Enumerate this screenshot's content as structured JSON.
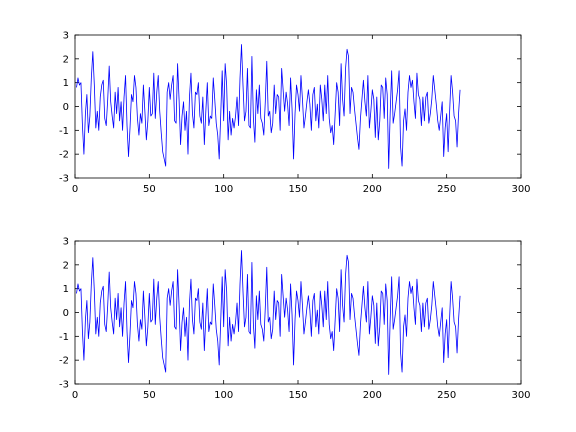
{
  "chart_data": [
    {
      "type": "line",
      "title": "",
      "xlabel": "",
      "ylabel": "",
      "xlim": [
        0,
        300
      ],
      "ylim": [
        -3,
        3
      ],
      "xticks": [
        0,
        50,
        100,
        150,
        200,
        250,
        300
      ],
      "yticks": [
        -3,
        -2,
        -1,
        0,
        1,
        2,
        3
      ],
      "xtick_labels": [
        "0",
        "50",
        "100",
        "150",
        "200",
        "250",
        "300"
      ],
      "ytick_labels": [
        "-3",
        "-2",
        "-1",
        "0",
        "1",
        "2",
        "3"
      ],
      "grid": false,
      "series": [
        {
          "color": "#0000ff",
          "x_start": 1,
          "x_step": 1,
          "values": [
            0.8,
            1.2,
            0.9,
            1.0,
            -0.8,
            -2.0,
            -0.3,
            0.5,
            -1.1,
            -0.4,
            1.2,
            2.3,
            0.9,
            -0.9,
            -0.2,
            -1.0,
            0.4,
            0.9,
            1.1,
            -0.5,
            -0.8,
            0.3,
            1.7,
            0.2,
            -0.4,
            -0.9,
            0.6,
            -0.3,
            0.8,
            -0.6,
            0.2,
            -1.0,
            0.4,
            1.3,
            -0.8,
            -2.1,
            -0.9,
            0.5,
            0.2,
            1.3,
            0.8,
            -0.5,
            -1.2,
            -0.3,
            -0.7,
            0.9,
            -0.2,
            -1.4,
            -0.6,
            0.8,
            -0.4,
            -0.3,
            1.4,
            -0.5,
            0.6,
            1.3,
            -0.2,
            -1.1,
            -1.9,
            -2.2,
            -2.5,
            0.6,
            1.0,
            0.3,
            0.9,
            1.3,
            -0.6,
            -0.7,
            1.8,
            0.3,
            -1.6,
            -0.4,
            0.2,
            -1.0,
            -0.2,
            -2.0,
            0.4,
            1.4,
            -0.3,
            -0.9,
            0.6,
            0.5,
            1.0,
            -0.4,
            -0.7,
            0.4,
            -1.6,
            -0.2,
            1.0,
            -0.8,
            -0.4,
            -0.5,
            1.2,
            0.3,
            -0.7,
            -1.2,
            -2.2,
            -0.4,
            1.5,
            -0.6,
            1.8,
            0.9,
            -1.4,
            -0.2,
            -1.2,
            -0.5,
            -0.9,
            -0.4,
            0.4,
            -0.8,
            1.2,
            2.6,
            0.9,
            -0.6,
            -0.2,
            1.6,
            -0.8,
            -0.9,
            2.1,
            -0.5,
            -1.5,
            0.7,
            -0.3,
            0.9,
            -0.5,
            -0.7,
            -1.2,
            0.2,
            1.9,
            -0.4,
            -0.2,
            -1.1,
            -0.7,
            0.9,
            -0.3,
            0.5,
            0.4,
            -1.0,
            1.6,
            0.7,
            -0.2,
            0.6,
            0.1,
            -0.8,
            1.2,
            -0.1,
            -2.2,
            -0.3,
            0.9,
            0.5,
            -0.2,
            1.3,
            0.3,
            -0.9,
            -0.4,
            0.2,
            0.7,
            0.1,
            -1.0,
            0.5,
            0.8,
            -0.6,
            0.1,
            -0.9,
            0.9,
            0.3,
            -0.6,
            0.9,
            -0.3,
            1.3,
            -0.5,
            -1.1,
            -0.8,
            -1.6,
            -0.3,
            1.0,
            0.6,
            -0.8,
            1.8,
            0.3,
            -0.4,
            1.6,
            2.4,
            2.1,
            -0.3,
            0.8,
            0.6,
            -0.1,
            -0.7,
            -1.3,
            -1.8,
            -0.5,
            0.3,
            1.1,
            0.2,
            -0.4,
            1.3,
            -0.9,
            -0.2,
            0.7,
            0.3,
            -1.3,
            0.4,
            -1.4,
            -0.6,
            0.9,
            0.8,
            -0.5,
            1.2,
            0.5,
            -2.6,
            -0.3,
            1.5,
            -0.7,
            -0.3,
            0.2,
            0.7,
            1.5,
            -1.7,
            -2.5,
            -0.6,
            -0.1,
            -1.0,
            0.6,
            1.3,
            0.8,
            1.1,
            0.2,
            -0.5,
            1.4,
            0.5,
            0.3,
            -0.8,
            0.4,
            -0.6,
            0.4,
            0.6,
            -0.7,
            -0.3,
            0.3,
            1.3,
            0.7,
            0.1,
            -0.6,
            -1.0,
            -0.4,
            0.2,
            -2.1,
            -0.9,
            -0.3,
            -1.9,
            -0.2,
            1.3,
            0.6,
            -0.4,
            -0.6,
            -1.7,
            -0.3,
            0.7
          ]
        }
      ]
    },
    {
      "type": "line",
      "title": "",
      "xlabel": "",
      "ylabel": "",
      "xlim": [
        0,
        300
      ],
      "ylim": [
        -3,
        3
      ],
      "xticks": [
        0,
        50,
        100,
        150,
        200,
        250,
        300
      ],
      "yticks": [
        -3,
        -2,
        -1,
        0,
        1,
        2,
        3
      ],
      "xtick_labels": [
        "0",
        "50",
        "100",
        "150",
        "200",
        "250",
        "300"
      ],
      "ytick_labels": [
        "-3",
        "-2",
        "-1",
        "0",
        "1",
        "2",
        "3"
      ],
      "grid": false,
      "series": [
        {
          "color": "#0000ff",
          "x_start": 1,
          "x_step": 1,
          "values": [
            0.8,
            1.2,
            0.9,
            1.0,
            -0.8,
            -2.0,
            -0.3,
            0.5,
            -1.1,
            -0.4,
            1.2,
            2.3,
            0.9,
            -0.9,
            -0.2,
            -1.0,
            0.4,
            0.9,
            1.1,
            -0.5,
            -0.8,
            0.3,
            1.7,
            0.2,
            -0.4,
            -0.9,
            0.6,
            -0.3,
            0.8,
            -0.6,
            0.2,
            -1.0,
            0.4,
            1.3,
            -0.8,
            -2.1,
            -0.9,
            0.5,
            0.2,
            1.3,
            0.8,
            -0.5,
            -1.2,
            -0.3,
            -0.7,
            0.9,
            -0.2,
            -1.4,
            -0.6,
            0.8,
            -0.4,
            -0.3,
            1.4,
            -0.5,
            0.6,
            1.3,
            -0.2,
            -1.1,
            -1.9,
            -2.2,
            -2.5,
            0.6,
            1.0,
            0.3,
            0.9,
            1.3,
            -0.6,
            -0.7,
            1.8,
            0.3,
            -1.6,
            -0.4,
            0.2,
            -1.0,
            -0.2,
            -2.0,
            0.4,
            1.4,
            -0.3,
            -0.9,
            0.6,
            0.5,
            1.0,
            -0.4,
            -0.7,
            0.4,
            -1.6,
            -0.2,
            1.0,
            -0.8,
            -0.4,
            -0.5,
            1.2,
            0.3,
            -0.7,
            -1.2,
            -2.2,
            -0.4,
            1.5,
            -0.6,
            1.8,
            0.9,
            -1.4,
            -0.2,
            -1.2,
            -0.5,
            -0.9,
            -0.4,
            0.4,
            -0.8,
            1.2,
            2.6,
            0.9,
            -0.6,
            -0.2,
            1.6,
            -0.8,
            -0.9,
            2.1,
            -0.5,
            -1.5,
            0.7,
            -0.3,
            0.9,
            -0.5,
            -0.7,
            -1.2,
            0.2,
            1.9,
            -0.4,
            -0.2,
            -1.1,
            -0.7,
            0.9,
            -0.3,
            0.5,
            0.4,
            -1.0,
            1.6,
            0.7,
            -0.2,
            0.6,
            0.1,
            -0.8,
            1.2,
            -0.1,
            -2.2,
            -0.3,
            0.9,
            0.5,
            -0.2,
            1.3,
            0.3,
            -0.9,
            -0.4,
            0.2,
            0.7,
            0.1,
            -1.0,
            0.5,
            0.8,
            -0.6,
            0.1,
            -0.9,
            0.9,
            0.3,
            -0.6,
            0.9,
            -0.3,
            1.3,
            -0.5,
            -1.1,
            -0.8,
            -1.6,
            -0.3,
            1.0,
            0.6,
            -0.8,
            1.8,
            0.3,
            -0.4,
            1.6,
            2.4,
            2.1,
            -0.3,
            0.8,
            0.6,
            -0.1,
            -0.7,
            -1.3,
            -1.8,
            -0.5,
            0.3,
            1.1,
            0.2,
            -0.4,
            1.3,
            -0.9,
            -0.2,
            0.7,
            0.3,
            -1.3,
            0.4,
            -1.4,
            -0.6,
            0.9,
            0.8,
            -0.5,
            1.2,
            0.5,
            -2.6,
            -0.3,
            1.5,
            -0.7,
            -0.3,
            0.2,
            0.7,
            1.5,
            -1.7,
            -2.5,
            -0.6,
            -0.1,
            -1.0,
            0.6,
            1.3,
            0.8,
            1.1,
            0.2,
            -0.5,
            1.4,
            0.5,
            0.3,
            -0.8,
            0.4,
            -0.6,
            0.4,
            0.6,
            -0.7,
            -0.3,
            0.3,
            1.3,
            0.7,
            0.1,
            -0.6,
            -1.0,
            -0.4,
            0.2,
            -2.1,
            -0.9,
            -0.3,
            -1.9,
            -0.2,
            1.3,
            0.6,
            -0.4,
            -0.6,
            -1.7,
            -0.3,
            0.7
          ]
        }
      ]
    }
  ]
}
